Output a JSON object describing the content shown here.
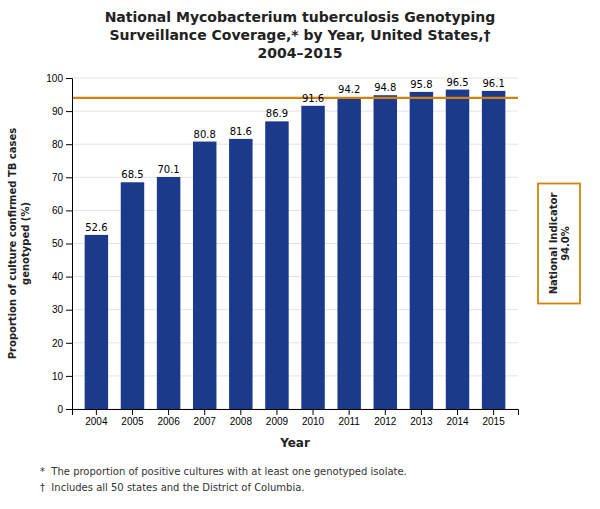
{
  "chart_data": {
    "type": "bar",
    "title": "National Mycobacterium tuberculosis Genotyping\nSurveillance Coverage,* by Year, United States,†\n2004–2015",
    "xlabel": "Year",
    "ylabel": "Proportion of culture confirmed TB cases\ngenotyped (%)",
    "categories": [
      "2004",
      "2005",
      "2006",
      "2007",
      "2008",
      "2009",
      "2010",
      "2011",
      "2012",
      "2013",
      "2014",
      "2015"
    ],
    "values": [
      52.6,
      68.5,
      70.1,
      80.8,
      81.6,
      86.9,
      91.6,
      94.2,
      94.8,
      95.8,
      96.5,
      96.1
    ],
    "color": "#1b3a8c",
    "ylim": [
      0,
      100
    ],
    "yticks": [
      0,
      10,
      20,
      30,
      40,
      50,
      60,
      70,
      80,
      90,
      100
    ],
    "grid": true,
    "data_labels": true,
    "reference_line": {
      "value": 94.0,
      "label": "National Indicator\n94.0%",
      "color": "#d4820a"
    },
    "annotations": [
      "*  The proportion of positive cultures with at least one genotyped isolate.",
      "†  Includes all 50 states and the District of Columbia."
    ]
  }
}
